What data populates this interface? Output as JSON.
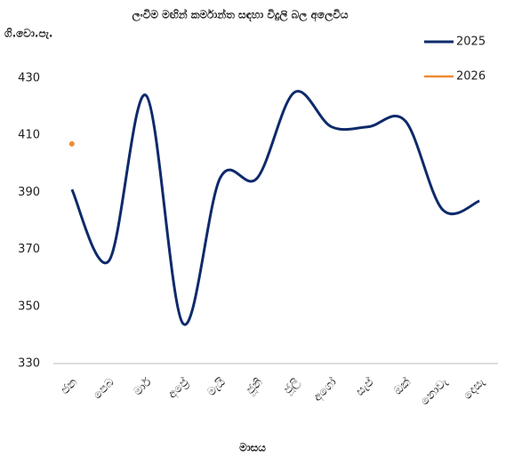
{
  "chart_data": {
    "type": "line",
    "title": "ලංවිම මඟින් කර්මාන්ත සඳහා විදුලි බල අලෙවිය",
    "y_label": "ගි.වො.පැ.",
    "x_label": "මාසය",
    "categories": [
      "ජන",
      "පෙබ",
      "මාර්",
      "අප්‍රේ",
      "මැයි",
      "ජූනි",
      "ජූලි",
      "අගෝ",
      "සැප්",
      "ඔක්",
      "නොවැ",
      "දෙසැ"
    ],
    "series": [
      {
        "name": "2025",
        "color": "#0e2a6b",
        "values": [
          391,
          366,
          424,
          344,
          395,
          395,
          425,
          413,
          413,
          415,
          384,
          387
        ]
      },
      {
        "name": "2026",
        "color": "#f08a34",
        "values": [
          407,
          null,
          null,
          null,
          null,
          null,
          null,
          null,
          null,
          null,
          null,
          null
        ]
      }
    ],
    "ylim": [
      330,
      435
    ],
    "yticks": [
      330,
      350,
      370,
      390,
      410,
      430
    ],
    "grid": false,
    "legend": "upper right"
  }
}
